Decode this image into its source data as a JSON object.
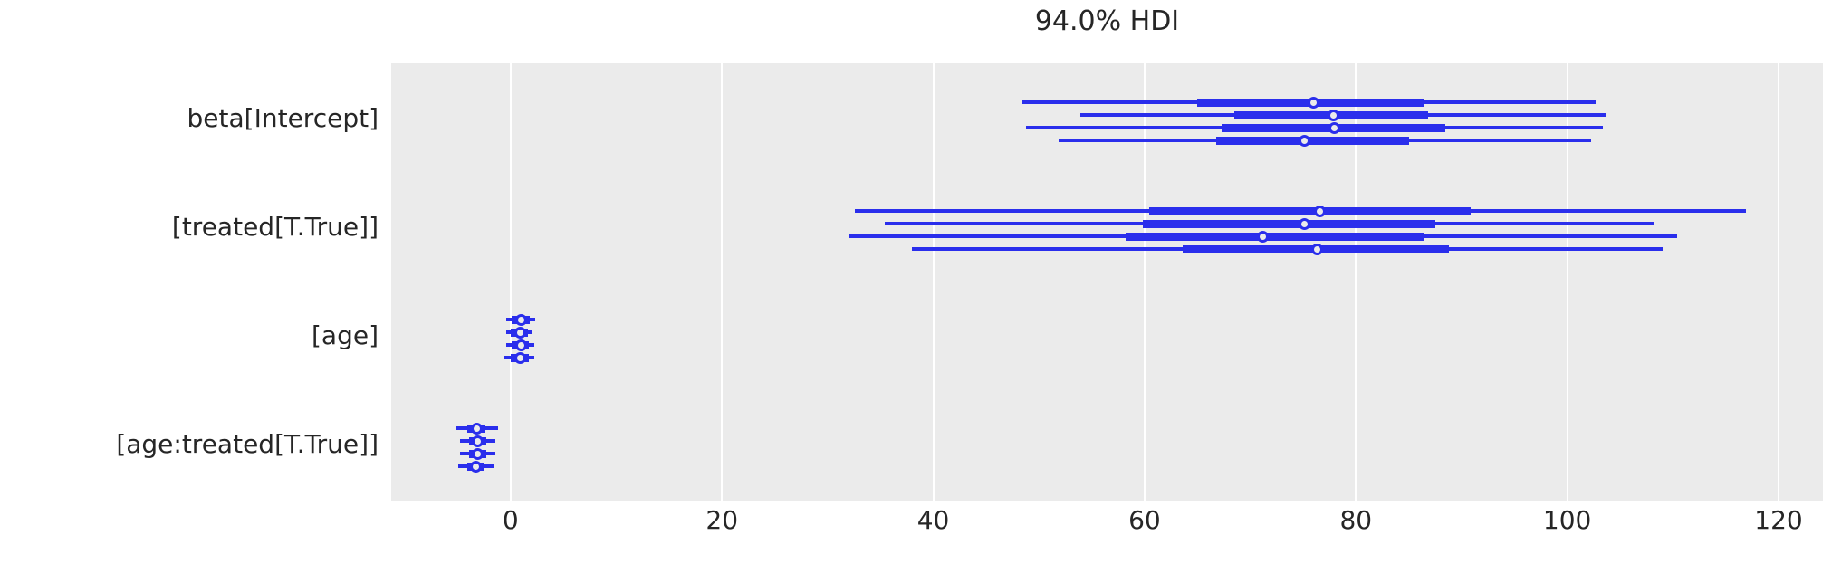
{
  "chart_data": {
    "type": "forest",
    "title": "94.0% HDI",
    "hdi_probability": "94.0%",
    "xlabel": "",
    "ylabel": "",
    "xlim": [
      -11.3,
      124.2
    ],
    "x_ticks": [
      0,
      20,
      40,
      60,
      80,
      100,
      120
    ],
    "grid": "vertical-white",
    "legend": "none",
    "colors": {
      "line": "#2a2eec",
      "plot_background": "#ebebeb",
      "figure_background": "#ffffff",
      "grid": "#ffffff",
      "text": "#262626",
      "marker_face": "#ebebeb"
    },
    "parameters": [
      {
        "label": "beta[Intercept]",
        "chains": [
          {
            "hdi_low": 48.4,
            "quartile_low": 65.0,
            "median": 76.0,
            "quartile_high": 86.4,
            "hdi_high": 102.7
          },
          {
            "hdi_low": 53.9,
            "quartile_low": 68.5,
            "median": 77.9,
            "quartile_high": 86.8,
            "hdi_high": 103.6
          },
          {
            "hdi_low": 48.8,
            "quartile_low": 67.3,
            "median": 78.0,
            "quartile_high": 88.5,
            "hdi_high": 103.4
          },
          {
            "hdi_low": 51.9,
            "quartile_low": 66.8,
            "median": 75.1,
            "quartile_high": 85.0,
            "hdi_high": 102.3
          }
        ]
      },
      {
        "label": "[treated[T.True]]",
        "chains": [
          {
            "hdi_low": 32.6,
            "quartile_low": 60.4,
            "median": 76.6,
            "quartile_high": 90.9,
            "hdi_high": 116.9
          },
          {
            "hdi_low": 35.4,
            "quartile_low": 59.8,
            "median": 75.1,
            "quartile_high": 87.5,
            "hdi_high": 108.2
          },
          {
            "hdi_low": 32.1,
            "quartile_low": 58.2,
            "median": 71.2,
            "quartile_high": 86.4,
            "hdi_high": 110.4
          },
          {
            "hdi_low": 38.0,
            "quartile_low": 63.6,
            "median": 76.3,
            "quartile_high": 88.8,
            "hdi_high": 109.0
          }
        ]
      },
      {
        "label": "[age]",
        "chains": [
          {
            "hdi_low": -0.4,
            "quartile_low": 0.1,
            "median": 1.0,
            "quartile_high": 1.8,
            "hdi_high": 2.3
          },
          {
            "hdi_low": -0.4,
            "quartile_low": 0.0,
            "median": 0.9,
            "quartile_high": 1.6,
            "hdi_high": 2.0
          },
          {
            "hdi_low": -0.4,
            "quartile_low": 0.1,
            "median": 1.0,
            "quartile_high": 1.7,
            "hdi_high": 2.2
          },
          {
            "hdi_low": -0.6,
            "quartile_low": 0.0,
            "median": 0.9,
            "quartile_high": 1.7,
            "hdi_high": 2.2
          }
        ]
      },
      {
        "label": "[age:treated[T.True]]",
        "chains": [
          {
            "hdi_low": -5.2,
            "quartile_low": -4.1,
            "median": -3.2,
            "quartile_high": -2.4,
            "hdi_high": -1.2
          },
          {
            "hdi_low": -4.8,
            "quartile_low": -3.9,
            "median": -3.1,
            "quartile_high": -2.3,
            "hdi_high": -1.4
          },
          {
            "hdi_low": -4.8,
            "quartile_low": -3.9,
            "median": -3.1,
            "quartile_high": -2.3,
            "hdi_high": -1.4
          },
          {
            "hdi_low": -5.0,
            "quartile_low": -4.1,
            "median": -3.3,
            "quartile_high": -2.5,
            "hdi_high": -1.6
          }
        ]
      }
    ]
  }
}
